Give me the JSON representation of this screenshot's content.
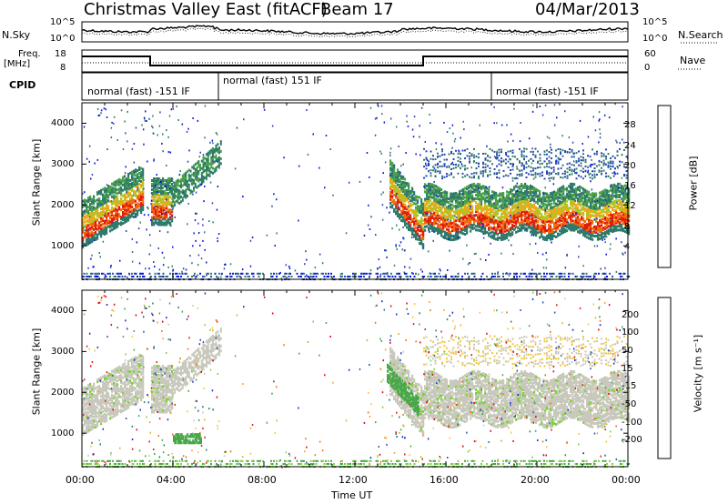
{
  "header": {
    "title": "Christmas Valley East (fitACF)",
    "beam": "Beam 17",
    "date": "04/Mar/2013"
  },
  "top_panels": {
    "nsky_label": "N.Sky",
    "nsky_ticks": [
      "10^5",
      "10^0"
    ],
    "nsearch_label": "N.Search",
    "nsearch_ticks": [
      "10^5",
      "10^0"
    ],
    "freq_label_1": "Freq.",
    "freq_label_2": "[MHz]",
    "freq_ticks": [
      "18",
      "8"
    ],
    "nave_label": "Nave",
    "nave_ticks": [
      "60",
      "0"
    ],
    "cpid_label": "CPID",
    "cpid_segments": [
      {
        "label": "normal (fast) -151 IF",
        "start_h": 0,
        "end_h": 6.0
      },
      {
        "label": "normal (fast) 151 IF",
        "start_h": 6.0,
        "end_h": 18.0
      },
      {
        "label": "normal (fast) -151 IF",
        "start_h": 18.0,
        "end_h": 24.0
      }
    ]
  },
  "chart_data": [
    {
      "type": "heatmap",
      "name": "power",
      "ylabel": "Slant Range [km]",
      "yticks": [
        "1000",
        "2000",
        "3000",
        "4000"
      ],
      "ylim": [
        180,
        4500
      ],
      "xlim": [
        0,
        24
      ],
      "colorbar_label": "Power [dB]",
      "colorbar_ticks": [
        "4",
        "8",
        "12",
        "16",
        "20",
        "24",
        "28"
      ],
      "colorbar_colors": [
        "#0a14e0",
        "#2a46b4",
        "#2f7a6c",
        "#4ca04c",
        "#a8c828",
        "#f0a818",
        "#f06a10",
        "#e01c0c"
      ]
    },
    {
      "type": "heatmap",
      "name": "velocity",
      "ylabel": "Slant Range [km]",
      "yticks": [
        "1000",
        "2000",
        "3000",
        "4000"
      ],
      "ylim": [
        180,
        4500
      ],
      "xlim": [
        0,
        24
      ],
      "xlabel": "Time UT",
      "xticks": [
        "00:00",
        "04:00",
        "08:00",
        "12:00",
        "16:00",
        "20:00",
        "00:00"
      ],
      "colorbar_label": "Velocity [m s⁻¹]",
      "colorbar_ticks": [
        "200",
        "100",
        "50",
        "15",
        "-15",
        "-50",
        "-100",
        "-200"
      ],
      "colorbar_colors": [
        "#1a2ad0",
        "#2a54b0",
        "#2f7a6c",
        "#46a846",
        "#7ed23c",
        "#c8c8bc",
        "#f0c83c",
        "#f0a828",
        "#f07010",
        "#e81c10",
        "#e00010"
      ]
    }
  ]
}
